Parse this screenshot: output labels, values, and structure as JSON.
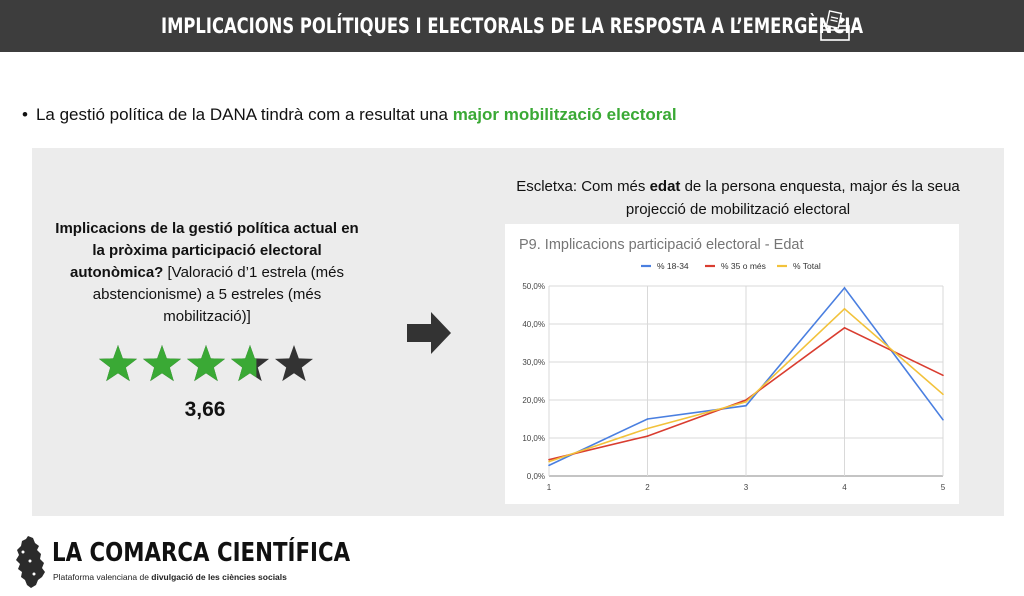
{
  "header": {
    "title": "IMPLICACIONS POLÍTIQUES I ELECTORALS DE LA RESPOSTA A L’EMERGÈNCIA",
    "icon": "ballot-box-icon"
  },
  "bullet": {
    "text": "La gestió política de la DANA tindrà com a resultat una ",
    "highlight": "major mobilització electoral",
    "highlight_color": "#3aa935"
  },
  "question": {
    "bold": "Implicacions de la gestió política actual en la pròxima participació electoral autonòmica?",
    "rest": " [Valoració d’1 estrela (més abstencionisme) a 5 estreles (més mobilització)]"
  },
  "rating": {
    "value": 3.66,
    "label": "3,66",
    "max": 5,
    "filled_color": "#3aa935",
    "empty_color": "#333333"
  },
  "caption": {
    "pre": "Escletxa: Com més ",
    "bold": "edat",
    "post": " de la persona enquesta, major és la seua projecció de mobilització electoral"
  },
  "chart_data": {
    "type": "line",
    "title": "P9. Implicacions participació electoral - Edat",
    "x": [
      1,
      2,
      3,
      4,
      5
    ],
    "ylim": [
      0,
      50
    ],
    "yticks": [
      "0,0%",
      "10,0%",
      "20,0%",
      "30,0%",
      "40,0%",
      "50,0%"
    ],
    "xticks": [
      "1",
      "2",
      "3",
      "4",
      "5"
    ],
    "grid": true,
    "legend": "top",
    "series": [
      {
        "name": "% 18-34",
        "color": "#4a7fe0",
        "values": [
          2.8,
          15.0,
          18.5,
          49.5,
          14.8
        ]
      },
      {
        "name": "% 35 o més",
        "color": "#d93d30",
        "values": [
          4.3,
          10.5,
          20.0,
          39.0,
          26.5
        ]
      },
      {
        "name": "% Total",
        "color": "#f2c23b",
        "values": [
          3.8,
          12.5,
          19.5,
          44.0,
          21.5
        ]
      }
    ]
  },
  "brand": {
    "name": "LA COMARCA CIENTÍFICA",
    "sub_pre": "Plataforma valenciana de ",
    "sub_bold": "divulgació de les ciències socials"
  }
}
